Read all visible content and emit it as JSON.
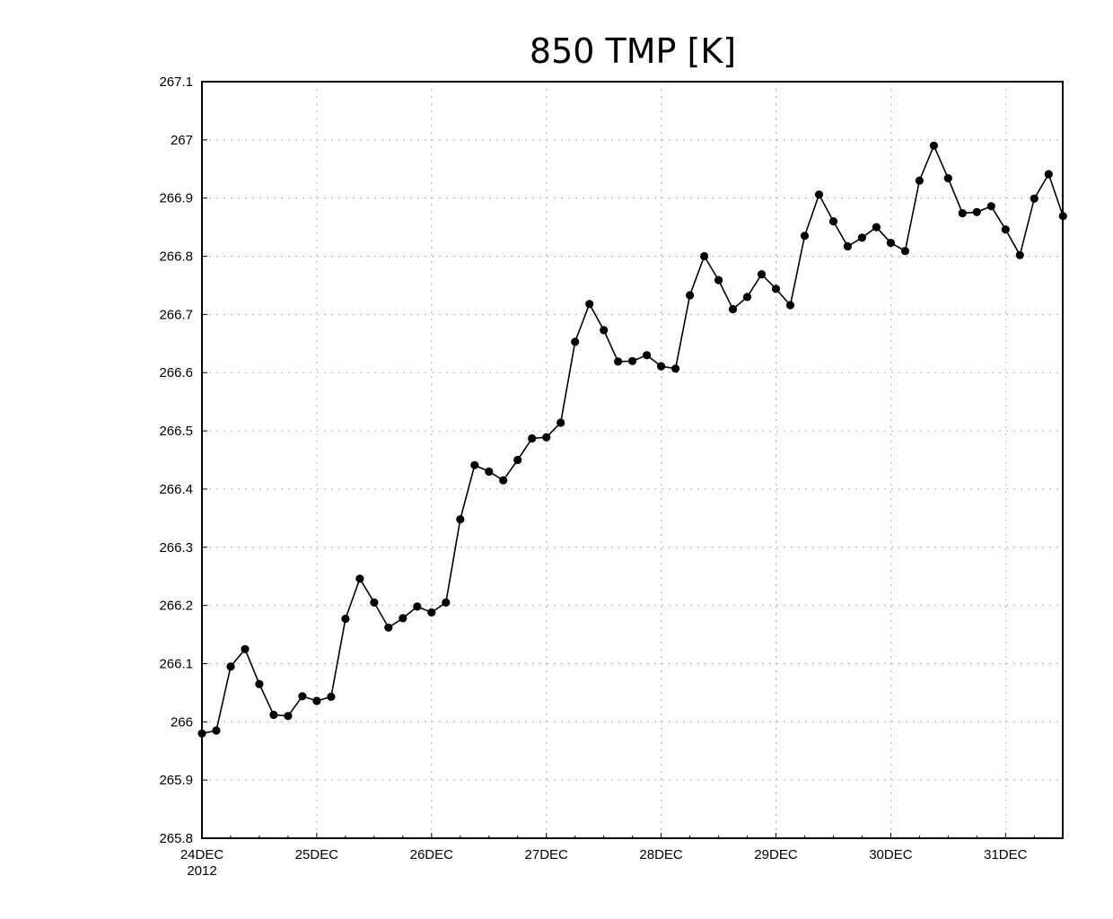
{
  "chart_data": {
    "type": "line",
    "title": "850 TMP [K]",
    "xlabel": "",
    "ylabel": "",
    "x_tick_labels": [
      "24DEC",
      "25DEC",
      "26DEC",
      "27DEC",
      "28DEC",
      "29DEC",
      "30DEC",
      "31DEC"
    ],
    "x_year_label": "2012",
    "y_tick_labels": [
      "265.8",
      "265.9",
      "266",
      "266.1",
      "266.2",
      "266.3",
      "266.4",
      "266.5",
      "266.6",
      "266.7",
      "266.8",
      "266.9",
      "267",
      "267.1"
    ],
    "ylim": [
      265.8,
      267.1
    ],
    "x_range": [
      "2012-12-24 00Z",
      "2012-12-31 12Z"
    ],
    "x_step": "3 hours",
    "grid": true,
    "marker": "filled-circle",
    "color": "#000000",
    "values": [
      265.98,
      265.985,
      266.095,
      266.125,
      266.065,
      266.012,
      266.01,
      266.044,
      266.036,
      266.043,
      266.177,
      266.246,
      266.205,
      266.162,
      266.178,
      266.198,
      266.188,
      266.205,
      266.348,
      266.441,
      266.43,
      266.415,
      266.45,
      266.487,
      266.489,
      266.514,
      266.653,
      266.718,
      266.673,
      266.619,
      266.62,
      266.63,
      266.611,
      266.607,
      266.733,
      266.8,
      266.759,
      266.709,
      266.73,
      266.769,
      266.744,
      266.716,
      266.835,
      266.906,
      266.86,
      266.817,
      266.832,
      266.85,
      266.823,
      266.809,
      266.93,
      266.99,
      266.934,
      266.874,
      266.876,
      266.886,
      266.846,
      266.802,
      266.899,
      266.941,
      266.869
    ]
  }
}
